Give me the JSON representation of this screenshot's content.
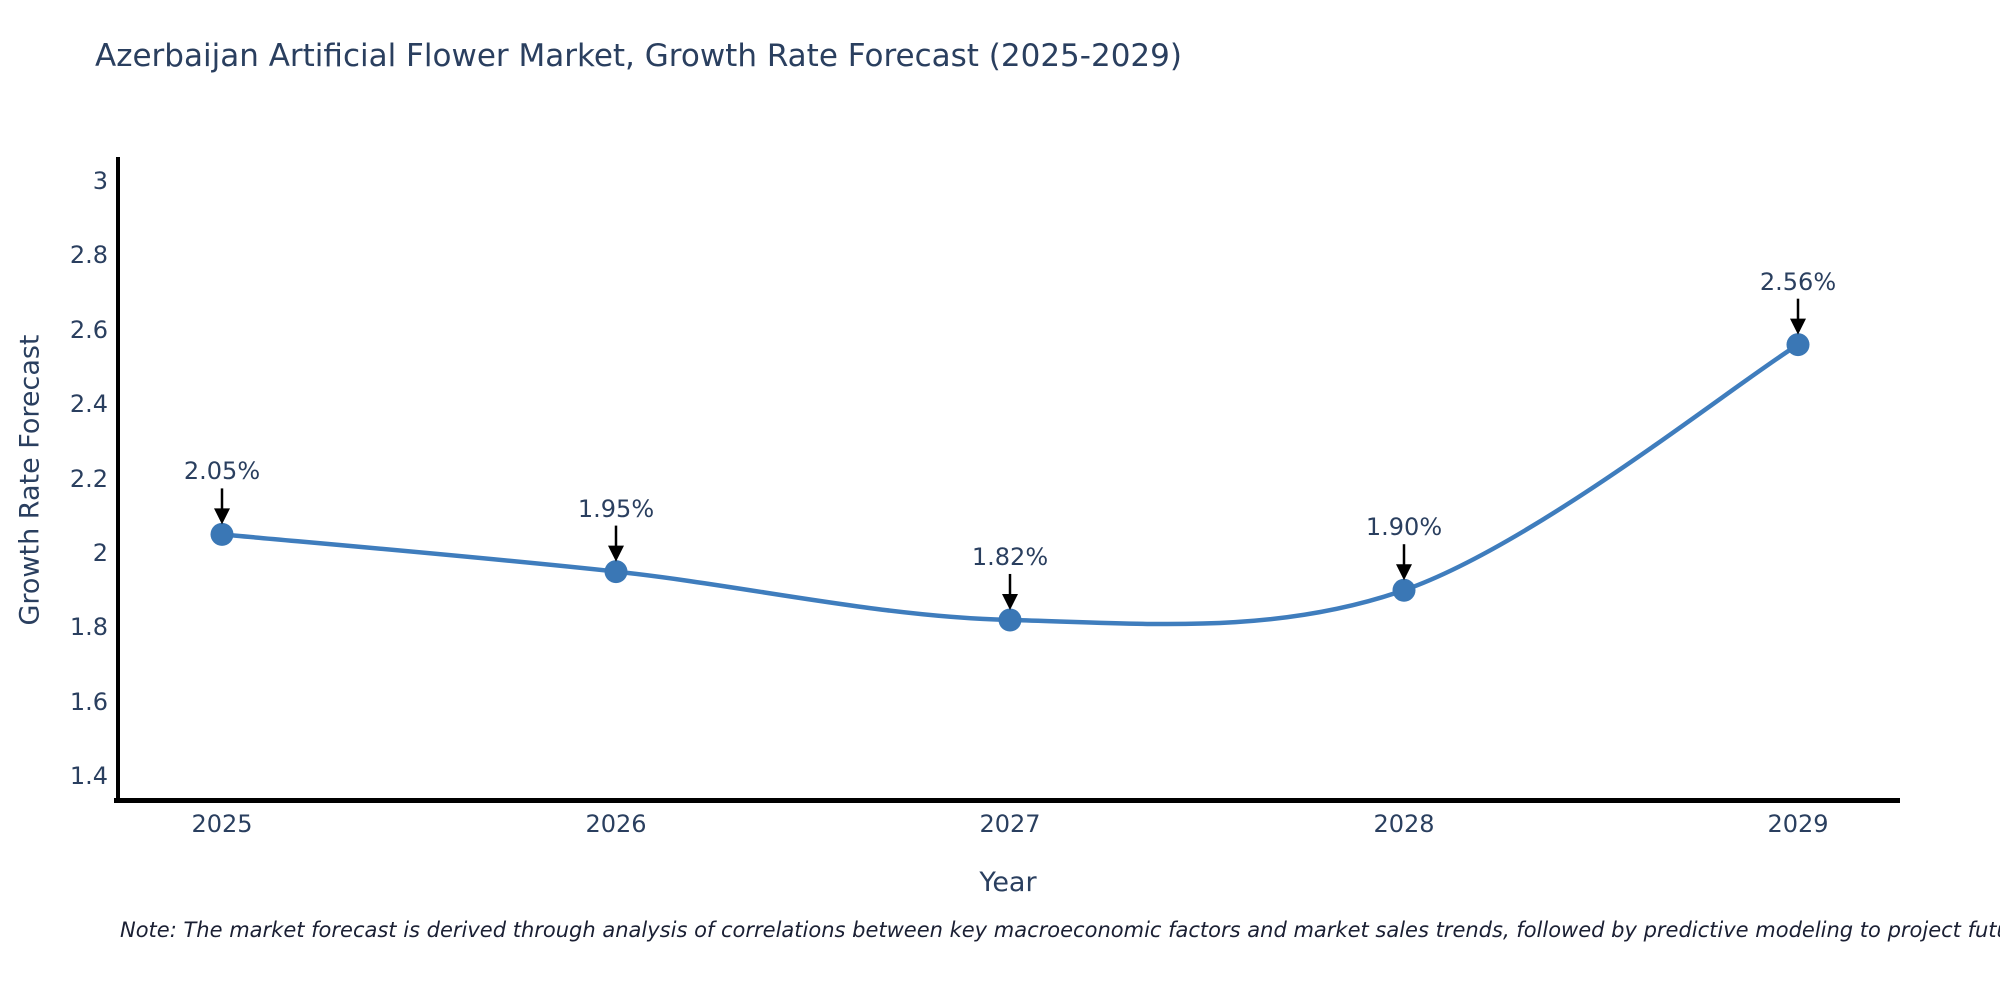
{
  "title": "Azerbaijan Artificial Flower Market, Growth Rate Forecast (2025-2029)",
  "note": "Note: The market forecast is derived through analysis of correlations between key macroeconomic factors and market sales trends, followed by predictive modeling to project future sales",
  "chart_data": {
    "type": "line",
    "title": "Azerbaijan Artificial Flower Market, Growth Rate Forecast (2025-2029)",
    "xlabel": "Year",
    "ylabel": "Growth Rate Forecast",
    "x": [
      2025,
      2026,
      2027,
      2028,
      2029
    ],
    "values": [
      2.05,
      1.95,
      1.82,
      1.9,
      2.56
    ],
    "point_labels": [
      "2.05%",
      "1.95%",
      "1.82%",
      "1.90%",
      "2.56%"
    ],
    "xtick_labels": [
      "2025",
      "2026",
      "2027",
      "2028",
      "2029"
    ],
    "yticks": [
      3,
      2.8,
      2.6,
      2.4,
      2.2,
      2,
      1.8,
      1.6,
      1.4
    ],
    "ytick_labels": [
      "3",
      "2.8",
      "2.6",
      "2.4",
      "2.2",
      "2",
      "1.8",
      "1.6",
      "1.4"
    ],
    "ylim": [
      1.34,
      3.06
    ],
    "grid": false,
    "legend": "none",
    "curve": "spline",
    "line_color": "#3f7dbd",
    "marker_color": "#3a77b5",
    "axis_color": "#000000",
    "text_color": "#2a3f5f",
    "arrow_color": "#000000"
  }
}
